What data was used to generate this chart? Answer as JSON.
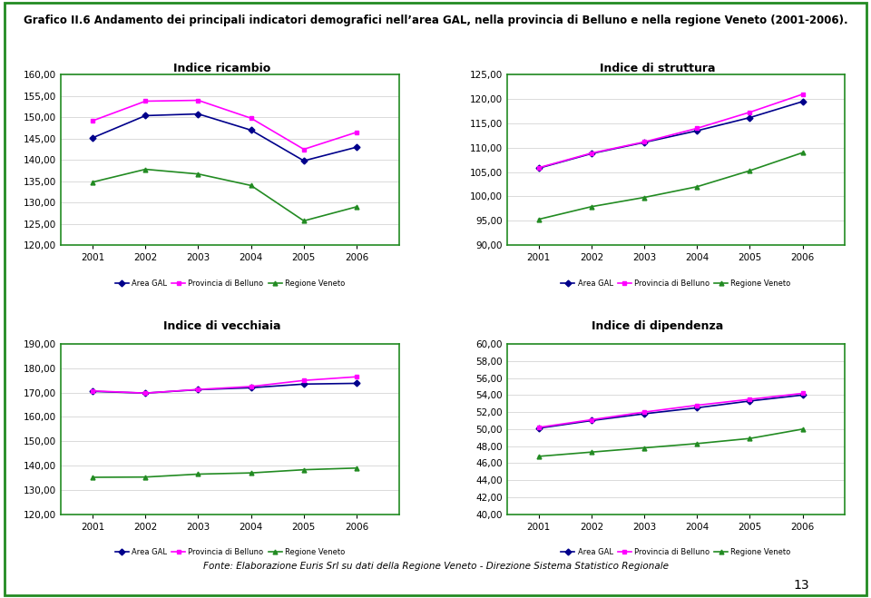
{
  "title_line1": "Grafico II.6 Andamento dei principali indicatori demografici nell’area GAL, nella provincia di Belluno e nella regione Veneto (2001-2006).",
  "footer": "Fonte: Elaborazione Euris Srl su dati della Regione Veneto - Direzione Sistema Statistico Regionale",
  "page_number": "13",
  "years": [
    2001,
    2002,
    2003,
    2004,
    2005,
    2006
  ],
  "colors": {
    "area_gal": "#00008B",
    "provincia": "#FF00FF",
    "regione": "#228B22"
  },
  "border_color": "#228B22",
  "charts": [
    {
      "title": "Indice ricambio",
      "ylim": [
        120.0,
        160.0
      ],
      "yticks": [
        120.0,
        125.0,
        130.0,
        135.0,
        140.0,
        145.0,
        150.0,
        155.0,
        160.0
      ],
      "series": {
        "area_gal": [
          145.2,
          150.4,
          150.8,
          147.0,
          139.8,
          143.0
        ],
        "provincia": [
          149.2,
          153.8,
          154.0,
          149.8,
          142.5,
          146.5
        ],
        "regione": [
          134.8,
          137.8,
          136.7,
          134.0,
          125.7,
          129.0
        ]
      }
    },
    {
      "title": "Indice di struttura",
      "ylim": [
        90.0,
        125.0
      ],
      "yticks": [
        90.0,
        95.0,
        100.0,
        105.0,
        110.0,
        115.0,
        120.0,
        125.0
      ],
      "series": {
        "area_gal": [
          105.8,
          108.8,
          111.1,
          113.5,
          116.2,
          119.5
        ],
        "provincia": [
          105.9,
          108.9,
          111.2,
          114.0,
          117.3,
          121.0
        ],
        "regione": [
          95.3,
          97.9,
          99.8,
          102.0,
          105.3,
          109.0
        ]
      }
    },
    {
      "title": "Indice di vecchiaia",
      "ylim": [
        120.0,
        190.0
      ],
      "yticks": [
        120.0,
        130.0,
        140.0,
        150.0,
        160.0,
        170.0,
        180.0,
        190.0
      ],
      "series": {
        "area_gal": [
          170.5,
          169.8,
          171.2,
          172.0,
          173.5,
          173.8
        ],
        "provincia": [
          170.7,
          169.8,
          171.3,
          172.5,
          175.0,
          176.5
        ],
        "regione": [
          135.2,
          135.3,
          136.5,
          137.0,
          138.3,
          139.0
        ]
      }
    },
    {
      "title": "Indice di dipendenza",
      "ylim": [
        40.0,
        60.0
      ],
      "yticks": [
        40.0,
        42.0,
        44.0,
        46.0,
        48.0,
        50.0,
        52.0,
        54.0,
        56.0,
        58.0,
        60.0
      ],
      "series": {
        "area_gal": [
          50.1,
          51.0,
          51.8,
          52.5,
          53.3,
          54.0
        ],
        "provincia": [
          50.2,
          51.1,
          52.0,
          52.8,
          53.5,
          54.2
        ],
        "regione": [
          46.8,
          47.3,
          47.8,
          48.3,
          48.9,
          50.0
        ]
      }
    }
  ],
  "legend_labels": [
    "Area GAL",
    "Provincia di Belluno",
    "Regione Veneto"
  ],
  "marker_styles": [
    "D",
    "s",
    "^"
  ]
}
